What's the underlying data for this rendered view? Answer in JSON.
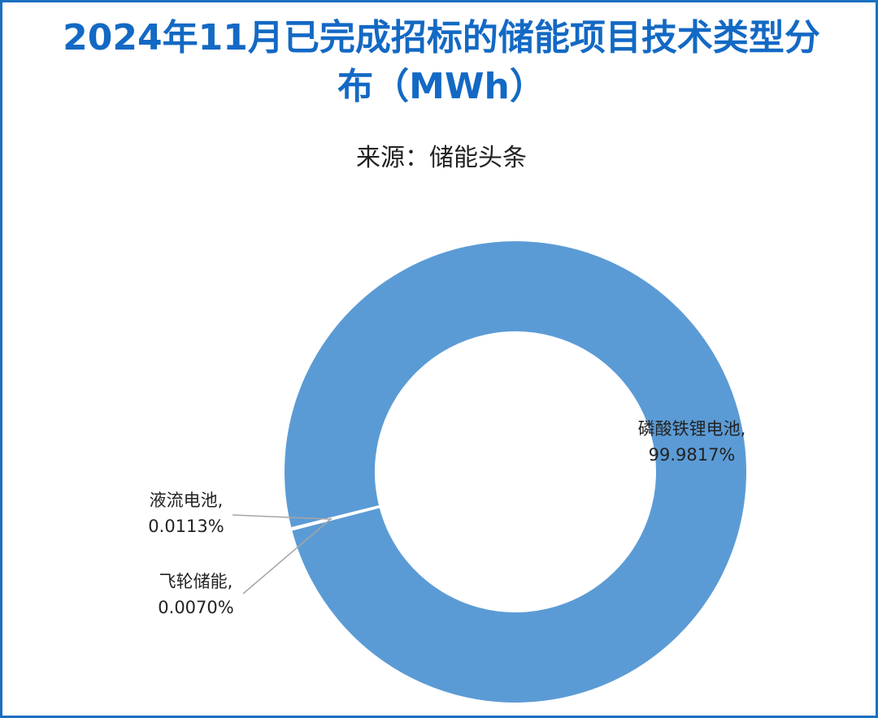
{
  "title": "2024年11月已完成招标的储能项目技术类型分布（MWh）",
  "source": "来源：储能头条",
  "chart_data": {
    "type": "pie",
    "donut": true,
    "series": [
      {
        "name": "磷酸铁锂电池",
        "value": 99.9817,
        "label_name": "磷酸铁锂电池,",
        "label_value": "99.9817%",
        "color": "#5b9bd5"
      },
      {
        "name": "液流电池",
        "value": 0.0113,
        "label_name": "液流电池,",
        "label_value": "0.0113%",
        "color": "#5b9bd5"
      },
      {
        "name": "飞轮储能",
        "value": 0.007,
        "label_name": "飞轮储能,",
        "label_value": "0.0070%",
        "color": "#5b9bd5"
      }
    ],
    "legend": "none",
    "leader_line_color": "#a6a6a6"
  }
}
